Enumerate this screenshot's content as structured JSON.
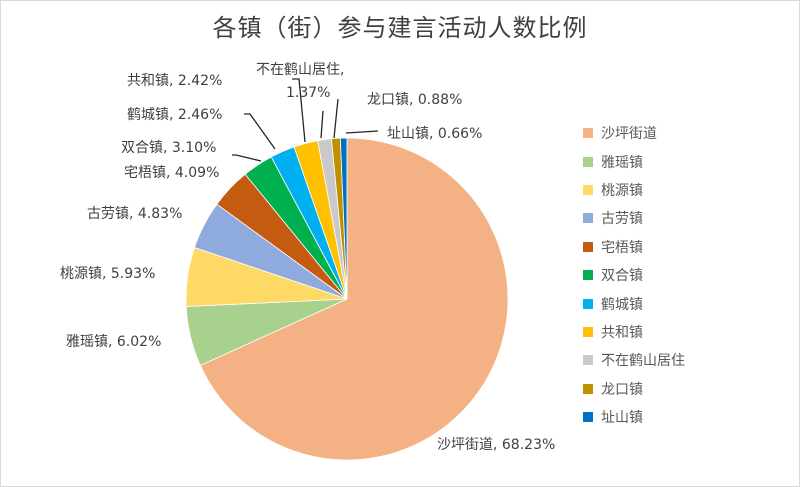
{
  "chart_data": {
    "type": "pie",
    "title": "各镇（街）参与建言活动人数比例",
    "categories": [
      "沙坪街道",
      "雅瑶镇",
      "桃源镇",
      "古劳镇",
      "宅梧镇",
      "双合镇",
      "鹤城镇",
      "共和镇",
      "不在鹤山居住",
      "龙口镇",
      "址山镇"
    ],
    "values": [
      68.23,
      6.02,
      5.93,
      4.83,
      4.09,
      3.1,
      2.46,
      2.42,
      1.37,
      0.88,
      0.66
    ],
    "colors": [
      "#F4B183",
      "#A9D18E",
      "#FFD966",
      "#8FAADC",
      "#C55A11",
      "#00B050",
      "#00B0F0",
      "#FFC000",
      "#C9C9C9",
      "#BF9000",
      "#0070C0"
    ],
    "data_labels": [
      "沙坪街道, 68.23%",
      "雅瑶镇, 6.02%",
      "桃源镇, 5.93%",
      "古劳镇, 4.83%",
      "宅梧镇, 4.09%",
      "双合镇, 3.10%",
      "鹤城镇, 2.46%",
      "共和镇, 2.42%",
      "不在鹤山居住,",
      "龙口镇, 0.88%",
      "址山镇, 0.66%"
    ],
    "data_label_extra": "1.37%",
    "legend_position": "right",
    "unit": "%"
  }
}
